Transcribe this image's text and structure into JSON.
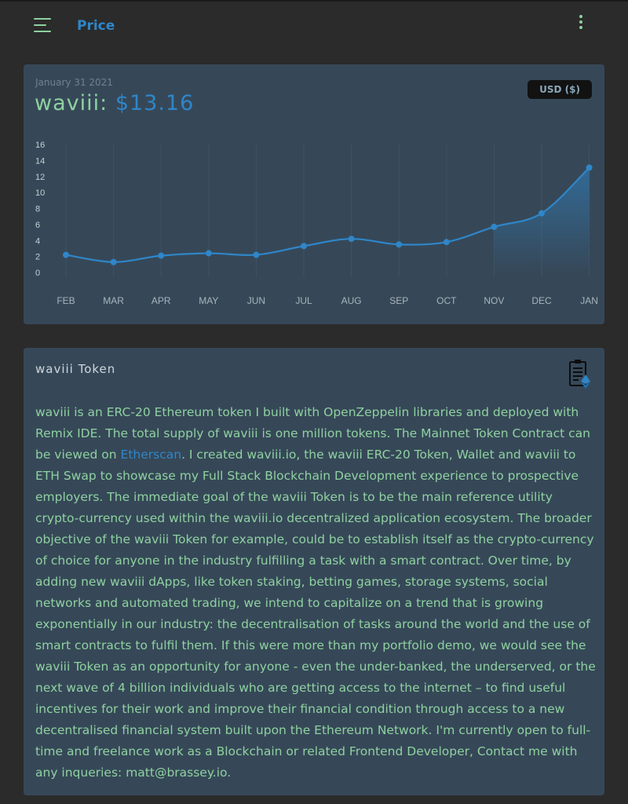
{
  "header": {
    "title": "Price"
  },
  "price_card": {
    "date": "January 31 2021",
    "token_name": "waviii:",
    "token_price": "$13.16",
    "currency_button": "USD ($)"
  },
  "chart_data": {
    "type": "line",
    "categories": [
      "FEB",
      "MAR",
      "APR",
      "MAY",
      "JUN",
      "JUL",
      "AUG",
      "SEP",
      "OCT",
      "NOV",
      "DEC",
      "JAN"
    ],
    "values": [
      2.2,
      1.3,
      2.1,
      2.4,
      2.2,
      3.3,
      4.2,
      3.5,
      3.8,
      5.7,
      7.4,
      13.1
    ],
    "yticks": [
      0,
      2,
      4,
      6,
      8,
      10,
      12,
      14,
      16
    ],
    "ylim": [
      0,
      16
    ],
    "grid": true,
    "line_color": "#2f86c9"
  },
  "token_card": {
    "title": "waviii Token",
    "icon": "clipboard-ethereum-icon",
    "description_part1": "waviii is an ERC-20 Ethereum token I built with OpenZeppelin libraries and deployed with Remix IDE. The total supply of waviii is one million tokens. The Mainnet Token Contract can be viewed on ",
    "link_text": "Etherscan",
    "description_part2": ". I created waviii.io, the waviii ERC-20 Token, Wallet and waviii to ETH Swap to showcase my Full Stack Blockchain Development experience to prospective employers. The immediate goal of the waviii Token is to be the main reference utility crypto-currency used within the waviii.io decentralized application ecosystem. The broader objective of the waviii Token for example, could be to establish itself as the crypto-currency of choice for anyone in the industry fulfilling a task with a smart contract. Over time, by adding new waviii dApps, like token staking, betting games, storage systems, social networks and automated trading, we intend to capitalize on a trend that is growing exponentially in our industry: the decentralisation of tasks around the world and the use of smart contracts to fulfil them. If this were more than my portfolio demo, we would see the waviii Token as an opportunity for anyone - even the under-banked, the underserved, or the next wave of 4 billion individuals who are getting access to the internet – to find useful incentives for their work and improve their financial condition through access to a new decentralised financial system built upon the Ethereum Network. I'm currently open to full-time and freelance work as a Blockchain or related Frontend Developer, Contact me with any inqueries: matt@brassey.io."
  }
}
